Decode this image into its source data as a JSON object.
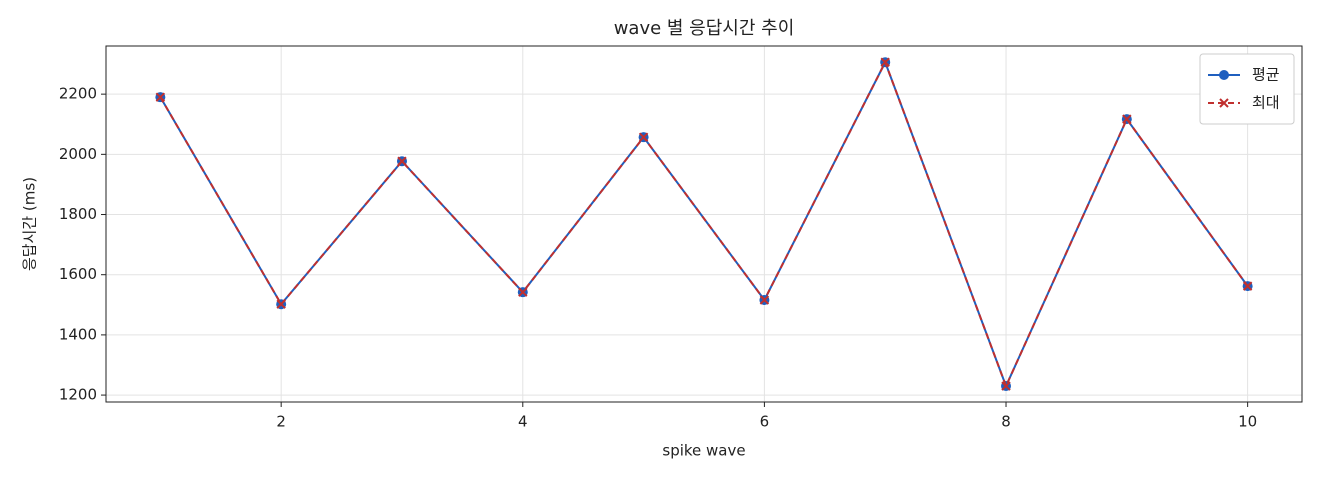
{
  "chart_data": {
    "type": "line",
    "title": "wave 별 응답시간 추이",
    "xlabel": "spike wave",
    "ylabel": "응답시간 (ms)",
    "x": [
      1,
      2,
      3,
      4,
      5,
      6,
      7,
      8,
      9,
      10
    ],
    "series": [
      {
        "name": "평균",
        "color": "#1f5fbf",
        "linestyle": "solid",
        "marker": "o",
        "values": [
          2190,
          1502,
          1977,
          1542,
          2057,
          1516,
          2306,
          1230,
          2117,
          1562
        ]
      },
      {
        "name": "최대",
        "color": "#c0302f",
        "linestyle": "dashed",
        "marker": "x",
        "values": [
          2190,
          1502,
          1977,
          1542,
          2057,
          1516,
          2306,
          1230,
          2117,
          1562
        ]
      }
    ],
    "xlim": [
      0.55,
      10.45
    ],
    "xticks": [
      2,
      4,
      6,
      8,
      10
    ],
    "ylim": [
      1177,
      2360
    ],
    "yticks": [
      1200,
      1400,
      1600,
      1800,
      2000,
      2200
    ],
    "grid": true,
    "legend": "upper right"
  }
}
